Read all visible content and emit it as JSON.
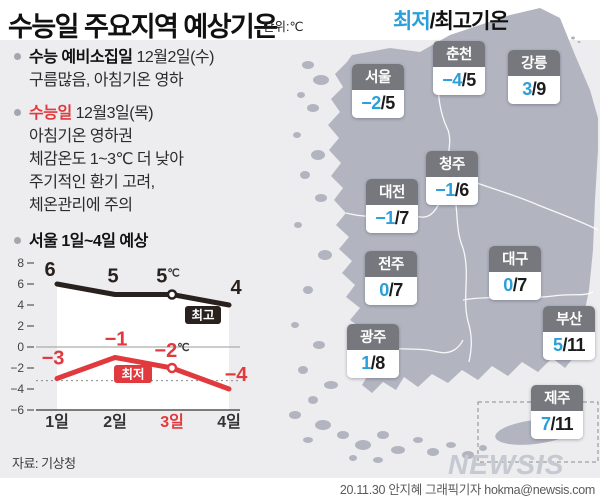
{
  "title": "수능일 주요지역 예상기온",
  "unit_label": "단위:℃",
  "colors": {
    "accent_blue": "#2b9fd9",
    "accent_red": "#e0393e",
    "land_gray": "#b2b5c0",
    "panel_bg": "#ededef",
    "city_header_gray": "#77787d"
  },
  "notes": [
    {
      "label": "수능 예비소집일",
      "rest": "12월2일(수)",
      "lines": [
        "구름많음, 아침기온 영하"
      ]
    },
    {
      "label": "수능일",
      "rest": "12월3일(목)",
      "lines": [
        "아침기온 영하권",
        "체감온도 1~3℃ 더 낮아",
        "주기적인 환기 고려,",
        "체온관리에 주의"
      ]
    },
    {
      "label": "서울 1일~4일 예상",
      "rest": "",
      "lines": []
    }
  ],
  "chart_data": {
    "type": "line",
    "title": "서울 1일~4일 예상",
    "categories": [
      "1일",
      "2일",
      "3일",
      "4일"
    ],
    "series": [
      {
        "name": "최고",
        "values": [
          6,
          5,
          5,
          4
        ],
        "color": "#29211e"
      },
      {
        "name": "최저",
        "values": [
          -3,
          -1,
          -2,
          -4
        ],
        "color": "#e0393e"
      }
    ],
    "unit": "℃",
    "unit_label_index": 2,
    "marker_index": 2,
    "highlight_category_index": 2,
    "ylim": [
      -6,
      8
    ],
    "ytick_step": 2,
    "reference_line_y": -3.2,
    "grid": "zero-line-only",
    "legend_position": "inline-badges"
  },
  "map": {
    "legend_min": "최저",
    "legend_slash": "/",
    "legend_rest": "최고기온",
    "slash": "/",
    "cities": [
      {
        "name": "서울",
        "min": "−2",
        "max": "5"
      },
      {
        "name": "춘천",
        "min": "−4",
        "max": "5"
      },
      {
        "name": "강릉",
        "min": "3",
        "max": "9"
      },
      {
        "name": "청주",
        "min": "−1",
        "max": "6"
      },
      {
        "name": "대전",
        "min": "−1",
        "max": "7"
      },
      {
        "name": "전주",
        "min": "0",
        "max": "7"
      },
      {
        "name": "대구",
        "min": "0",
        "max": "7"
      },
      {
        "name": "광주",
        "min": "1",
        "max": "8"
      },
      {
        "name": "부산",
        "min": "5",
        "max": "11"
      },
      {
        "name": "제주",
        "min": "7",
        "max": "11"
      }
    ]
  },
  "footer": {
    "source": "자료: 기상청",
    "logo": "NEWSIS",
    "credit": "20.11.30 안지혜 그래픽기자 hokma@newsis.com"
  }
}
